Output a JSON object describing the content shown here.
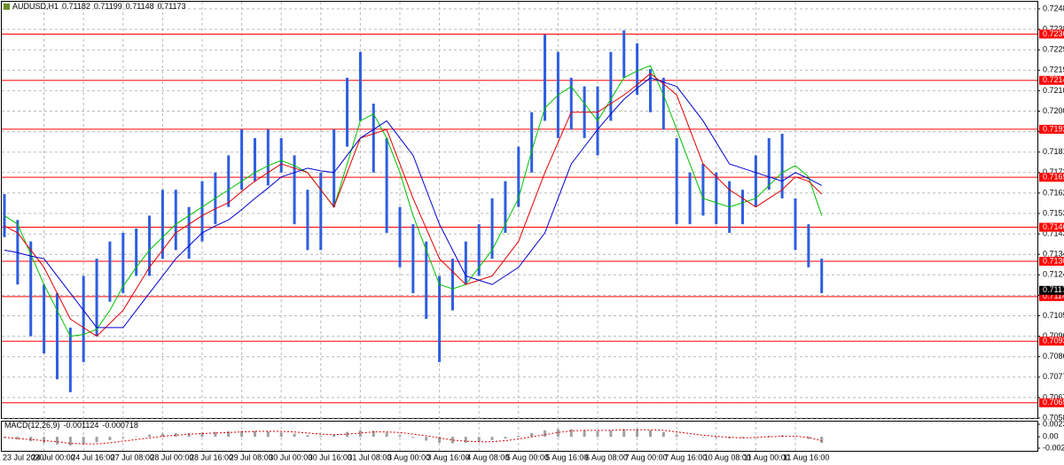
{
  "chart_data": [
    {
      "type": "ohlc",
      "symbol": "AUDUSD,H1",
      "last_ohlc": [
        0.71182,
        0.71199,
        0.71148,
        0.71173
      ],
      "categories": [
        "23 Jul 2020",
        null,
        null,
        "24 Jul 00:00",
        null,
        null,
        "24 Jul 16:00",
        null,
        null,
        "27 Jul 08:00",
        null,
        null,
        "28 Jul 00:00",
        null,
        null,
        "28 Jul 16:00",
        null,
        null,
        "29 Jul 08:00",
        null,
        null,
        "30 Jul 00:00",
        null,
        null,
        "30 Jul 16:00",
        null,
        null,
        "31 Jul 08:00",
        null,
        null,
        "3 Aug 00:00",
        null,
        null,
        "3 Aug 16:00",
        null,
        null,
        "4 Aug 08:00",
        null,
        null,
        "5 Aug 00:00",
        null,
        null,
        "5 Aug 16:00",
        null,
        null,
        "6 Aug 08:00",
        null,
        null,
        "7 Aug 00:00",
        null,
        null,
        "7 Aug 16:00",
        null,
        null,
        "10 Aug 08:00",
        null,
        null,
        "11 Aug 00:00",
        null,
        null,
        "11 Aug 16:00",
        null,
        null
      ],
      "high": [
        0.7162,
        0.715,
        0.714,
        0.712,
        0.7116,
        0.71,
        0.7124,
        0.7132,
        0.714,
        0.7144,
        0.7146,
        0.7152,
        0.7164,
        0.7164,
        0.7156,
        0.7168,
        0.7172,
        0.718,
        0.7192,
        0.7188,
        0.7192,
        0.7188,
        0.718,
        0.7164,
        0.7172,
        0.7192,
        0.7216,
        0.7228,
        0.7204,
        0.7188,
        0.7156,
        0.7148,
        0.714,
        0.7124,
        0.7132,
        0.714,
        0.7148,
        0.716,
        0.7168,
        0.7184,
        0.72,
        0.7236,
        0.7228,
        0.7216,
        0.7212,
        0.7212,
        0.7228,
        0.7238,
        0.7232,
        0.722,
        0.7216,
        0.7188,
        0.7172,
        0.7176,
        0.7172,
        0.7168,
        0.7164,
        0.718,
        0.7188,
        0.719,
        0.716,
        0.7148,
        0.7132
      ],
      "low": [
        0.7142,
        0.712,
        0.7096,
        0.7088,
        0.7076,
        0.707,
        0.7084,
        0.7096,
        0.7112,
        0.7116,
        0.7124,
        0.7124,
        0.7132,
        0.7136,
        0.7132,
        0.714,
        0.7148,
        0.7156,
        0.7164,
        0.7168,
        0.7166,
        0.7172,
        0.7148,
        0.7136,
        0.7136,
        0.7156,
        0.7184,
        0.7196,
        0.7172,
        0.7144,
        0.7128,
        0.7116,
        0.7104,
        0.7084,
        0.7108,
        0.712,
        0.7124,
        0.7132,
        0.7144,
        0.7156,
        0.7172,
        0.7196,
        0.7188,
        0.7192,
        0.7188,
        0.718,
        0.7196,
        0.7216,
        0.7208,
        0.72,
        0.7192,
        0.7148,
        0.7148,
        0.7152,
        0.7148,
        0.7144,
        0.7148,
        0.7156,
        0.7164,
        0.716,
        0.7136,
        0.7128,
        0.7116
      ],
      "color": "#2d5ee0",
      "series": [
        {
          "color": "#00c000",
          "values": [
            0.7152,
            0.7148,
            0.7134,
            0.712,
            0.7108,
            0.7096,
            0.70968,
            0.70992,
            0.7108,
            0.71192,
            0.7128,
            0.7136,
            0.7142,
            0.7148,
            0.7152,
            0.7156,
            0.716,
            0.7164,
            0.7168,
            0.7172,
            0.71752,
            0.71776,
            0.71752,
            0.7172,
            0.7164,
            0.7156,
            0.7176,
            0.7196,
            0.71992,
            0.7188,
            0.7172,
            0.7152,
            0.7136,
            0.712,
            0.7118,
            0.712,
            0.7128,
            0.7136,
            0.7148,
            0.716,
            0.7182,
            0.7202,
            0.7208,
            0.7212,
            0.7204,
            0.7196,
            0.7206,
            0.7216,
            0.72192,
            0.72216,
            0.7208,
            0.7192,
            0.7176,
            0.716,
            0.7158,
            0.7156,
            0.7158,
            0.716,
            0.7166,
            0.7172,
            0.71752,
            0.717,
            0.7152
          ]
        },
        {
          "color": "#e00000",
          "values": [
            0.71472,
            0.7144,
            0.7136,
            0.7128,
            0.7116,
            0.7104,
            0.71,
            0.7096,
            0.7102,
            0.7108,
            0.7118,
            0.7128,
            0.7136,
            0.7144,
            0.7148,
            0.7152,
            0.71552,
            0.7158,
            0.71632,
            0.7168,
            0.7172,
            0.7176,
            0.7174,
            0.7172,
            0.7164,
            0.7156,
            0.7172,
            0.7188,
            0.719,
            0.7192,
            0.7176,
            0.716,
            0.7146,
            0.7132,
            0.7126,
            0.712,
            0.7122,
            0.7124,
            0.7132,
            0.714,
            0.7156,
            0.7172,
            0.7186,
            0.72,
            0.72,
            0.72,
            0.7204,
            0.7208,
            0.72128,
            0.7218,
            0.72132,
            0.7208,
            0.7192,
            0.7176,
            0.717,
            0.7164,
            0.716,
            0.7156,
            0.716,
            0.7164,
            0.717,
            0.7168,
            0.7162
          ]
        },
        {
          "color": "#0000d0",
          "values": [
            0.7136,
            0.71348,
            0.71332,
            0.7132,
            0.7124,
            0.7116,
            0.7108,
            0.71,
            0.71,
            0.71,
            0.7108,
            0.7116,
            0.7124,
            0.7132,
            0.7138,
            0.7144,
            0.71472,
            0.715,
            0.71548,
            0.716,
            0.71648,
            0.717,
            0.7172,
            0.7174,
            0.71728,
            0.7172,
            0.718,
            0.7188,
            0.7192,
            0.7196,
            0.7188,
            0.718,
            0.7164,
            0.7148,
            0.7136,
            0.7124,
            0.7122,
            0.712,
            0.7124,
            0.7128,
            0.7136,
            0.7144,
            0.716,
            0.7176,
            0.7184,
            0.7192,
            0.71992,
            0.7206,
            0.72112,
            0.7216,
            0.7214,
            0.7212,
            0.7204,
            0.7196,
            0.7186,
            0.7176,
            0.7174,
            0.7172,
            0.717,
            0.7168,
            0.7172,
            0.71692,
            0.7166
          ]
        }
      ],
      "ylim": [
        0.7058,
        0.7248
      ],
      "yticks": [
        {
          "value": 0.7248,
          "label": "0.72480"
        },
        0.72385,
        {
          "value": 0.7229,
          "label": "0.72290"
        },
        0.72195,
        {
          "value": 0.721,
          "label": "0.72100"
        },
        0.72005,
        {
          "value": 0.7191,
          "label": "0.71910"
        },
        0.71815,
        {
          "value": 0.7172,
          "label": "0.71720"
        },
        0.71625,
        {
          "value": 0.7153,
          "label": "0.71530"
        },
        0.71435,
        {
          "value": 0.7134,
          "label": "0.71340"
        },
        0.71245,
        {
          "value": 0.7115,
          "label": "0.71150"
        },
        0.71055,
        {
          "value": 0.7096,
          "label": "0.70960"
        },
        0.70865,
        {
          "value": 0.7077,
          "label": "0.70770"
        },
        0.70675,
        {
          "value": 0.7058,
          "label": "0.70580"
        }
      ],
      "grid": true,
      "levels": [
        0.72363,
        0.72148,
        0.71921,
        0.71698,
        0.71466,
        0.71308,
        0.71144,
        0.70937,
        0.70651
      ],
      "level_color": "#ff0000"
    },
    {
      "type": "macd",
      "name": "MACD(12,26,9)",
      "ylim": [
        -0.00209,
        0.002315
      ],
      "yticks": [
        0.002315,
        {
          "value": 0,
          "label": "0.00"
        },
        -0.00209
      ],
      "series": [
        {
          "color": "#a0a0a0",
          "values": [
            -0.0002,
            -0.0005,
            -0.0008,
            -0.0011,
            -0.0014,
            -0.0016,
            -0.0014,
            -0.001,
            -0.0006,
            -0.0002,
            0.0001,
            0.0004,
            0.0006,
            0.0007,
            0.0007,
            0.0008,
            0.0009,
            0.001,
            0.0011,
            0.0011,
            0.001,
            0.0008,
            0.0006,
            0.0003,
            0.0002,
            0.0004,
            0.0009,
            0.0012,
            0.0011,
            0.0008,
            0.0003,
            -0.0002,
            -0.0007,
            -0.0011,
            -0.0012,
            -0.0011,
            -0.0009,
            -0.0006,
            -0.0003,
            0.0002,
            0.0007,
            0.0012,
            0.0014,
            0.0014,
            0.0012,
            0.0011,
            0.0012,
            0.0014,
            0.0014,
            0.0012,
            0.0009,
            0.0004,
            0.0001,
            -0.0001,
            -0.0002,
            -0.0003,
            -0.0002,
            0,
            0.0002,
            0.0003,
            0.0001,
            -0.0004,
            -0.001124
          ]
        },
        {
          "color": "#e00000",
          "values": [
            -0.0001,
            -0.0003,
            -0.0005,
            -0.0007,
            -0.0009,
            -0.0012,
            -0.0013,
            -0.0013,
            -0.0011,
            -0.0008,
            -0.0005,
            -0.0002,
            0.0001,
            0.0003,
            0.0005,
            0.0006,
            0.0007,
            0.0008,
            0.0009,
            0.001,
            0.001,
            0.001,
            0.0009,
            0.0007,
            0.0005,
            0.0004,
            0.0005,
            0.0007,
            0.0009,
            0.0009,
            0.0008,
            0.0005,
            0.0002,
            -0.0002,
            -0.0006,
            -0.0008,
            -0.0009,
            -0.0009,
            -0.0007,
            -0.0004,
            0,
            0.0004,
            0.0008,
            0.0011,
            0.0012,
            0.0012,
            0.0012,
            0.0013,
            0.0013,
            0.0013,
            0.0012,
            0.0009,
            0.0006,
            0.0003,
            0.0001,
            -0.0001,
            -0.0002,
            -0.0001,
            0,
            0.0001,
            0.0001,
            -0.0001,
            -0.000718
          ]
        }
      ]
    }
  ]
}
